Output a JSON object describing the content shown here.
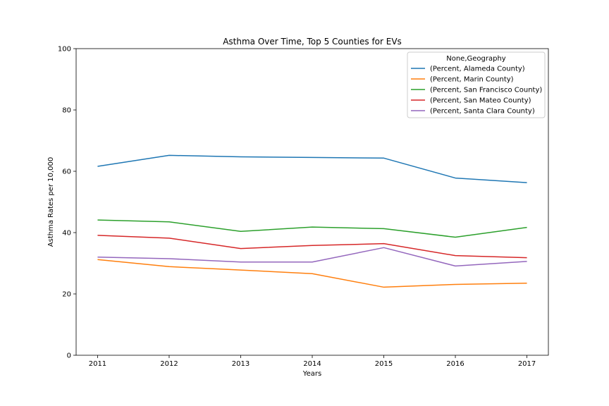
{
  "chart_data": {
    "type": "line",
    "title": "Asthma Over Time, Top 5 Counties for EVs",
    "xlabel": "Years",
    "ylabel": "Asthma Rates per 10,000",
    "x": [
      2011,
      2012,
      2013,
      2014,
      2015,
      2016,
      2017
    ],
    "ylim": [
      0,
      100
    ],
    "yticks": [
      0,
      20,
      40,
      60,
      80,
      100
    ],
    "grid": false,
    "legend": {
      "title": "None,Geography",
      "placement": "top-right"
    },
    "series": [
      {
        "name": "(Percent, Alameda County)",
        "color": "#1f77b4",
        "values": [
          61.6,
          65.2,
          64.7,
          64.5,
          64.3,
          57.8,
          56.3
        ]
      },
      {
        "name": "(Percent, Marin County)",
        "color": "#ff7f0e",
        "values": [
          31.2,
          28.9,
          27.8,
          26.6,
          22.2,
          23.1,
          23.5
        ]
      },
      {
        "name": "(Percent, San Francisco County)",
        "color": "#2ca02c",
        "values": [
          44.1,
          43.5,
          40.4,
          41.8,
          41.3,
          38.5,
          41.7
        ]
      },
      {
        "name": "(Percent, San Mateo County)",
        "color": "#d62728",
        "values": [
          39.1,
          38.2,
          34.8,
          35.8,
          36.4,
          32.5,
          31.8
        ]
      },
      {
        "name": "(Percent, Santa Clara County)",
        "color": "#9467bd",
        "values": [
          32.0,
          31.5,
          30.4,
          30.4,
          35.1,
          29.1,
          30.6
        ]
      }
    ]
  }
}
